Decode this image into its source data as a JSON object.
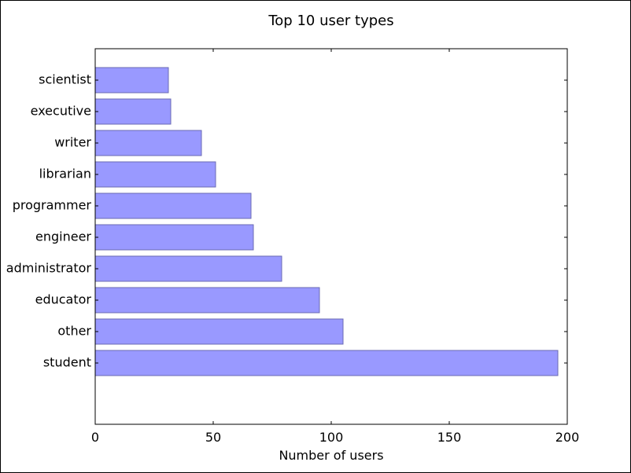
{
  "chart_data": {
    "type": "bar",
    "orientation": "horizontal",
    "title": "Top 10 user types",
    "xlabel": "Number of users",
    "ylabel": "",
    "categories": [
      "student",
      "other",
      "educator",
      "administrator",
      "engineer",
      "programmer",
      "librarian",
      "writer",
      "executive",
      "scientist"
    ],
    "values": [
      196,
      105,
      95,
      79,
      67,
      66,
      51,
      45,
      32,
      31
    ],
    "xlim": [
      0,
      200
    ],
    "xticks": [
      0,
      50,
      100,
      150,
      200
    ],
    "grid": false,
    "legend": "none",
    "bar_color": "#9999ff",
    "bar_edge_color": "#6a6ab3"
  }
}
